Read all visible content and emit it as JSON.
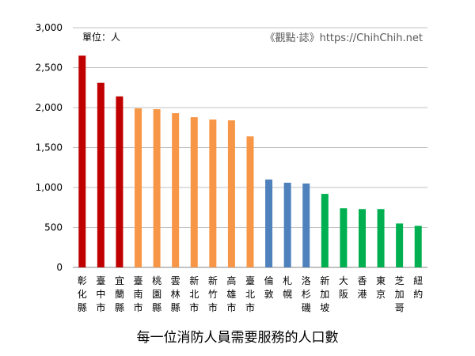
{
  "chart_data": {
    "type": "bar",
    "unit_note": "單位：人",
    "watermark": "《觀點‧誌》https://ChihChih.net",
    "xlabel": "",
    "ylabel": "",
    "ylim": [
      0,
      3000
    ],
    "yticks": [
      "0",
      "500",
      "1,000",
      "1,500",
      "2,000",
      "2,500",
      "3,000"
    ],
    "categories": [
      "彰化縣",
      "臺中市",
      "宜蘭縣",
      "臺南市",
      "桃園縣",
      "雲林縣",
      "新北市",
      "新竹市",
      "高雄市",
      "臺北市",
      "倫敦",
      "札幌",
      "洛杉磯",
      "新加坡",
      "大阪",
      "香港",
      "東京",
      "芝加哥",
      "紐約"
    ],
    "values": [
      2650,
      2310,
      2140,
      1990,
      1980,
      1930,
      1880,
      1850,
      1840,
      1640,
      1100,
      1060,
      1050,
      920,
      740,
      730,
      730,
      550,
      520
    ],
    "bar_colors": [
      "#C00000",
      "#C00000",
      "#C00000",
      "#F79646",
      "#F79646",
      "#F79646",
      "#F79646",
      "#F79646",
      "#F79646",
      "#F79646",
      "#4F81BD",
      "#4F81BD",
      "#4F81BD",
      "#00B050",
      "#00B050",
      "#00B050",
      "#00B050",
      "#00B050",
      "#00B050"
    ],
    "grid": true,
    "legend": "none"
  },
  "caption": "每一位消防人員需要服務的人口數"
}
